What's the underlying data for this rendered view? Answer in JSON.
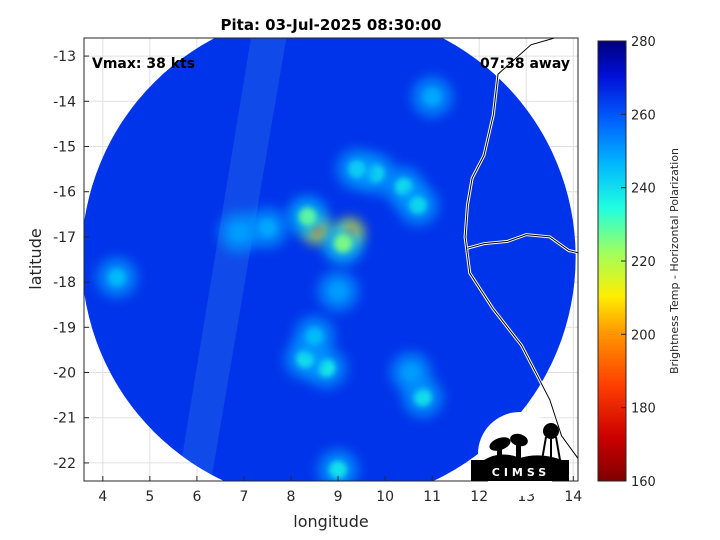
{
  "chart_data": {
    "type": "heatmap",
    "title": "Pita: 03-Jul-2025 08:30:00",
    "xlabel": "longitude",
    "ylabel": "latitude",
    "xlim": [
      3.6,
      14.1
    ],
    "ylim": [
      -22.4,
      -12.6
    ],
    "xticks": [
      4,
      5,
      6,
      7,
      8,
      9,
      10,
      11,
      12,
      13,
      14
    ],
    "yticks": [
      -13,
      -14,
      -15,
      -16,
      -17,
      -18,
      -19,
      -20,
      -21,
      -22
    ],
    "grid": true,
    "annotations": {
      "vmax": "Vmax: 38 kts",
      "away": "07:38 away"
    },
    "colorbar": {
      "label": "Brightness Temp - Horizontal Polarization",
      "range": [
        160,
        280
      ],
      "ticks": [
        160,
        180,
        200,
        220,
        240,
        260,
        280
      ]
    },
    "swath": {
      "center": [
        8.8,
        -17.45
      ],
      "radius_deg": 5.25,
      "background_value": 265
    },
    "features": [
      {
        "lon": 8.55,
        "lat": -16.85,
        "value": 195
      },
      {
        "lon": 9.25,
        "lat": -16.9,
        "value": 192
      },
      {
        "lon": 9.1,
        "lat": -17.15,
        "value": 225
      },
      {
        "lon": 8.35,
        "lat": -16.55,
        "value": 228
      },
      {
        "lon": 9.8,
        "lat": -15.6,
        "value": 238
      },
      {
        "lon": 10.4,
        "lat": -15.9,
        "value": 238
      },
      {
        "lon": 10.7,
        "lat": -16.3,
        "value": 240
      },
      {
        "lon": 9.4,
        "lat": -15.5,
        "value": 242
      },
      {
        "lon": 8.75,
        "lat": -19.9,
        "value": 235
      },
      {
        "lon": 8.3,
        "lat": -19.7,
        "value": 238
      },
      {
        "lon": 8.5,
        "lat": -19.2,
        "value": 245
      },
      {
        "lon": 10.8,
        "lat": -20.55,
        "value": 238
      },
      {
        "lon": 9.0,
        "lat": -22.15,
        "value": 238
      },
      {
        "lon": 7.5,
        "lat": -16.8,
        "value": 248
      },
      {
        "lon": 6.9,
        "lat": -16.9,
        "value": 250
      },
      {
        "lon": 11.0,
        "lat": -13.9,
        "value": 248
      },
      {
        "lon": 10.55,
        "lat": -20.0,
        "value": 250
      },
      {
        "lon": 9.0,
        "lat": -18.2,
        "value": 250
      },
      {
        "lon": 4.3,
        "lat": -17.9,
        "value": 245
      }
    ],
    "coastline": [
      [
        13.6,
        -12.6
      ],
      [
        13.1,
        -12.75
      ],
      [
        12.4,
        -13.4
      ],
      [
        12.3,
        -14.3
      ],
      [
        12.1,
        -15.2
      ],
      [
        11.85,
        -15.7
      ],
      [
        11.75,
        -16.3
      ],
      [
        11.7,
        -17.0
      ],
      [
        11.8,
        -17.8
      ],
      [
        12.3,
        -18.6
      ],
      [
        12.9,
        -19.4
      ],
      [
        13.3,
        -20.2
      ],
      [
        13.5,
        -20.6
      ],
      [
        13.75,
        -21.4
      ],
      [
        14.1,
        -21.9
      ]
    ],
    "border": [
      [
        11.75,
        -17.25
      ],
      [
        12.1,
        -17.15
      ],
      [
        12.6,
        -17.1
      ],
      [
        13.0,
        -16.95
      ],
      [
        13.5,
        -17.0
      ],
      [
        13.9,
        -17.3
      ],
      [
        14.1,
        -17.35
      ]
    ]
  },
  "logo": {
    "text": "CIMSS"
  }
}
